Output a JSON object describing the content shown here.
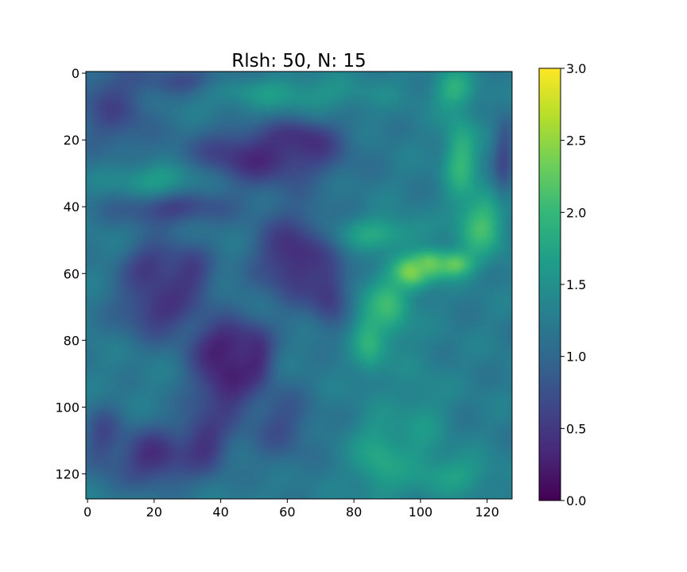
{
  "chart_data": {
    "type": "heatmap",
    "title": "Rlsh: 50, N: 15",
    "xlabel": "",
    "ylabel": "",
    "grid_size": 128,
    "xlim": [
      0,
      128
    ],
    "ylim": [
      128,
      0
    ],
    "x_ticks": [
      "0",
      "20",
      "40",
      "60",
      "80",
      "100",
      "120"
    ],
    "y_ticks": [
      "0",
      "20",
      "40",
      "60",
      "80",
      "100",
      "120"
    ],
    "colorbar": {
      "colormap": "viridis",
      "min": 0.0,
      "max": 3.0,
      "ticks": [
        "0.0",
        "0.5",
        "1.0",
        "1.5",
        "2.0",
        "2.5",
        "3.0"
      ]
    },
    "colormap_stops": [
      "#440154",
      "#482878",
      "#3e4989",
      "#31688e",
      "#26828e",
      "#1f9e89",
      "#35b779",
      "#6ece58",
      "#b5de2b",
      "#fde725"
    ],
    "background_value": 1.25,
    "features": [
      {
        "x": 42,
        "y": 92,
        "rx": 10,
        "ry": 12,
        "value": 0.25
      },
      {
        "x": 42,
        "y": 82,
        "rx": 10,
        "ry": 8,
        "value": 0.22
      },
      {
        "x": 50,
        "y": 85,
        "rx": 5,
        "ry": 8,
        "value": 0.3
      },
      {
        "x": 52,
        "y": 25,
        "rx": 22,
        "ry": 9,
        "value": 0.35
      },
      {
        "x": 65,
        "y": 20,
        "rx": 10,
        "ry": 6,
        "value": 0.4
      },
      {
        "x": 62,
        "y": 55,
        "rx": 12,
        "ry": 14,
        "value": 0.35
      },
      {
        "x": 72,
        "y": 65,
        "rx": 6,
        "ry": 10,
        "value": 0.45
      },
      {
        "x": 25,
        "y": 40,
        "rx": 18,
        "ry": 6,
        "value": 0.55
      },
      {
        "x": 20,
        "y": 58,
        "rx": 9,
        "ry": 8,
        "value": 0.5
      },
      {
        "x": 22,
        "y": 70,
        "rx": 13,
        "ry": 10,
        "value": 0.45
      },
      {
        "x": 30,
        "y": 60,
        "rx": 8,
        "ry": 8,
        "value": 0.5
      },
      {
        "x": 20,
        "y": 115,
        "rx": 12,
        "ry": 9,
        "value": 0.4
      },
      {
        "x": 35,
        "y": 110,
        "rx": 8,
        "ry": 10,
        "value": 0.45
      },
      {
        "x": 5,
        "y": 110,
        "rx": 6,
        "ry": 10,
        "value": 0.65
      },
      {
        "x": 8,
        "y": 10,
        "rx": 12,
        "ry": 14,
        "value": 0.65
      },
      {
        "x": 30,
        "y": 3,
        "rx": 16,
        "ry": 5,
        "value": 0.6
      },
      {
        "x": 58,
        "y": 105,
        "rx": 10,
        "ry": 12,
        "value": 0.75
      },
      {
        "x": 100,
        "y": 108,
        "rx": 8,
        "ry": 20,
        "value": 1.55
      },
      {
        "x": 88,
        "y": 115,
        "rx": 8,
        "ry": 12,
        "value": 1.8
      },
      {
        "x": 110,
        "y": 5,
        "rx": 6,
        "ry": 6,
        "value": 1.9
      },
      {
        "x": 112,
        "y": 25,
        "rx": 5,
        "ry": 12,
        "value": 2.0
      },
      {
        "x": 118,
        "y": 45,
        "rx": 7,
        "ry": 10,
        "value": 2.1
      },
      {
        "x": 110,
        "y": 57,
        "rx": 6,
        "ry": 4,
        "value": 2.3
      },
      {
        "x": 97,
        "y": 60,
        "rx": 6,
        "ry": 5,
        "value": 2.45
      },
      {
        "x": 103,
        "y": 57,
        "rx": 5,
        "ry": 4,
        "value": 2.35
      },
      {
        "x": 90,
        "y": 70,
        "rx": 7,
        "ry": 10,
        "value": 2.0
      },
      {
        "x": 85,
        "y": 80,
        "rx": 5,
        "ry": 10,
        "value": 1.9
      },
      {
        "x": 88,
        "y": 48,
        "rx": 12,
        "ry": 5,
        "value": 1.8
      },
      {
        "x": 60,
        "y": 6,
        "rx": 28,
        "ry": 5,
        "value": 1.6
      },
      {
        "x": 20,
        "y": 32,
        "rx": 14,
        "ry": 5,
        "value": 1.65
      },
      {
        "x": 110,
        "y": 120,
        "rx": 12,
        "ry": 6,
        "value": 1.7
      },
      {
        "x": 125,
        "y": 25,
        "rx": 3,
        "ry": 12,
        "value": 0.7
      }
    ]
  }
}
